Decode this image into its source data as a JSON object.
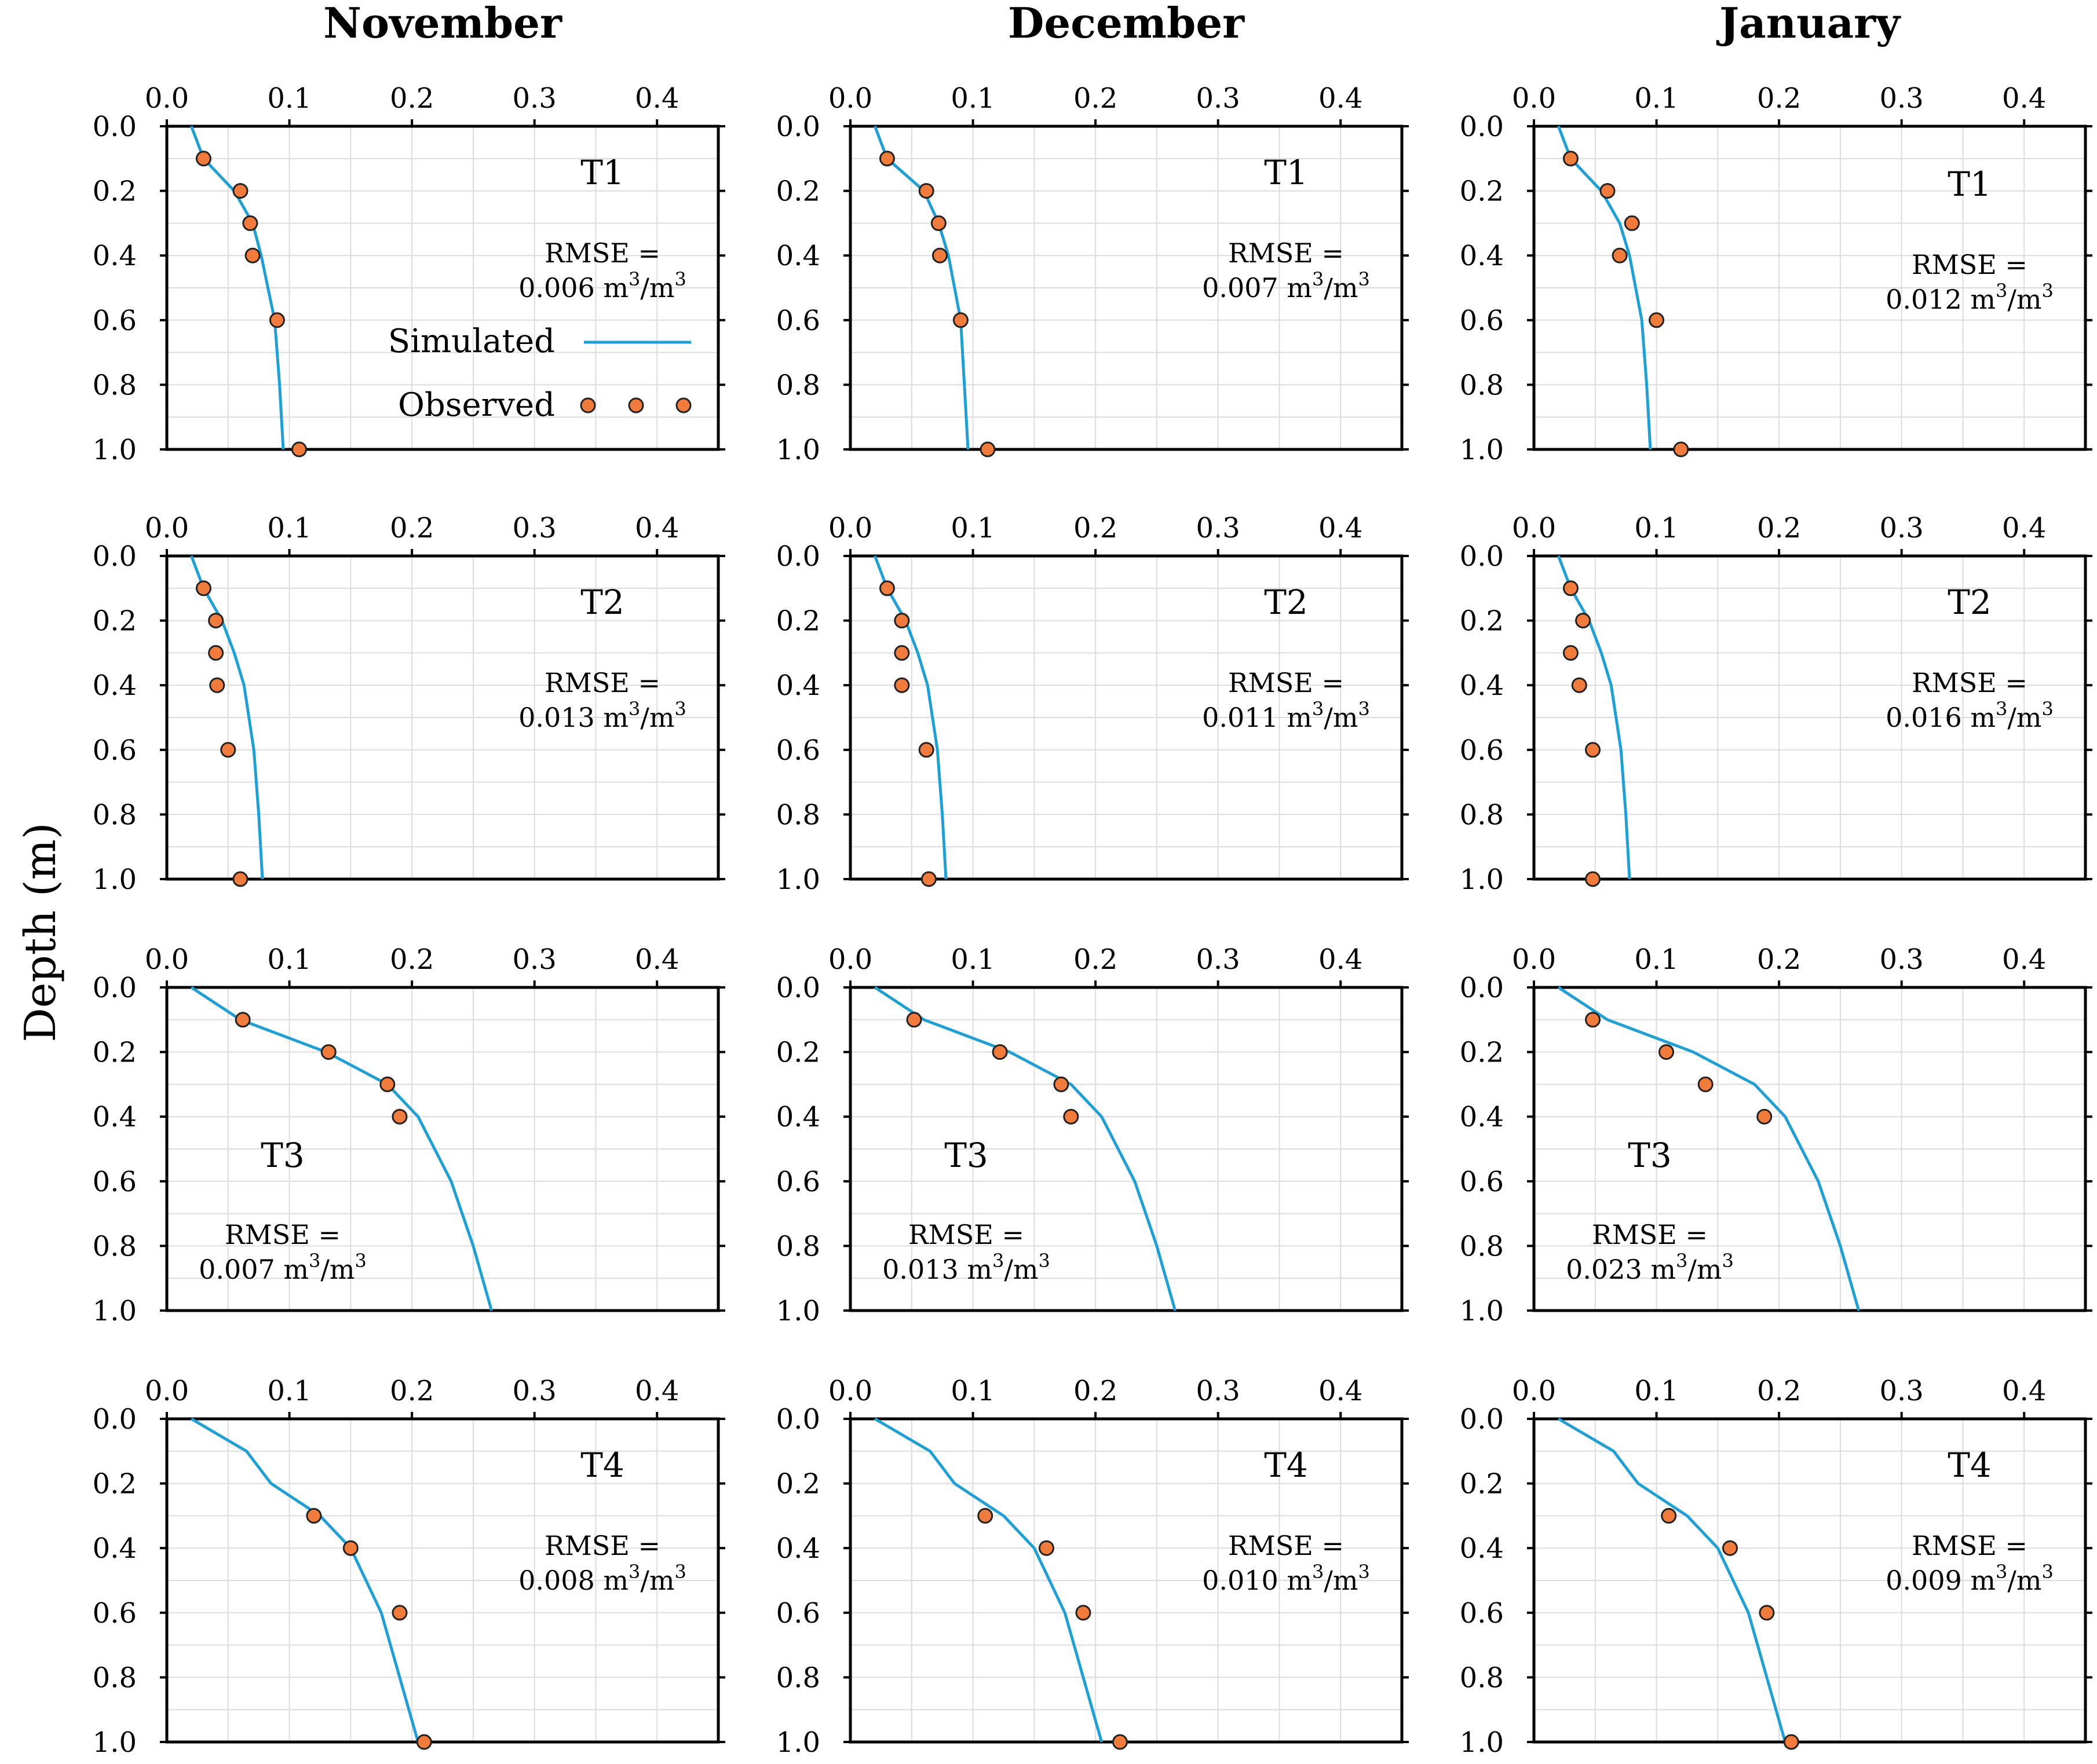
{
  "chart_data": {
    "type": "line",
    "ylabel": "Depth (m)",
    "columns": [
      "November",
      "December",
      "January"
    ],
    "rows": [
      "T1",
      "T2",
      "T3",
      "T4"
    ],
    "xlim": [
      0,
      0.45
    ],
    "ylim": [
      0,
      1.0
    ],
    "x_ticks": [
      0.0,
      0.1,
      0.2,
      0.3,
      0.4
    ],
    "x_tick_labels": [
      "0.0",
      "0.1",
      "0.2",
      "0.3",
      "0.4"
    ],
    "y_ticks": [
      0.0,
      0.2,
      0.4,
      0.6,
      0.8,
      1.0
    ],
    "y_tick_labels": [
      "0.0",
      "0.2",
      "0.4",
      "0.6",
      "0.8",
      "1.0"
    ],
    "legend": {
      "simulated": "Simulated",
      "observed": "Observed",
      "position": "inside top-left panel, center-right"
    },
    "colors": {
      "simulated": "#1ba1d8",
      "observed_fill": "#f07b3a",
      "observed_edge": "#222222",
      "grid": "#dcdcdc"
    },
    "panels": [
      {
        "col": 0,
        "row": 0,
        "label": "T1",
        "rmse_text": "RMSE =",
        "rmse_value": "0.006 m",
        "rmse_unit": "/m",
        "rmse_exp": "3",
        "simulated": {
          "depth": [
            0,
            0.1,
            0.2,
            0.3,
            0.4,
            0.6,
            0.8,
            1.0
          ],
          "value": [
            0.02,
            0.03,
            0.055,
            0.07,
            0.077,
            0.088,
            0.092,
            0.095
          ]
        },
        "observed": {
          "depth": [
            0.1,
            0.2,
            0.3,
            0.4,
            0.6,
            1.0
          ],
          "value": [
            0.03,
            0.06,
            0.068,
            0.07,
            0.09,
            0.108
          ]
        }
      },
      {
        "col": 1,
        "row": 0,
        "label": "T1",
        "rmse_text": "RMSE =",
        "rmse_value": "0.007 m",
        "rmse_unit": "/m",
        "rmse_exp": "3",
        "simulated": {
          "depth": [
            0,
            0.1,
            0.2,
            0.3,
            0.4,
            0.6,
            0.8,
            1.0
          ],
          "value": [
            0.02,
            0.03,
            0.06,
            0.072,
            0.08,
            0.09,
            0.093,
            0.096
          ]
        },
        "observed": {
          "depth": [
            0.1,
            0.2,
            0.3,
            0.4,
            0.6,
            1.0
          ],
          "value": [
            0.03,
            0.062,
            0.072,
            0.073,
            0.09,
            0.112
          ]
        }
      },
      {
        "col": 2,
        "row": 0,
        "label": "T1",
        "rmse_text": "RMSE =",
        "rmse_value": "0.012 m",
        "rmse_unit": "/m",
        "rmse_exp": "3",
        "simulated": {
          "depth": [
            0,
            0.1,
            0.2,
            0.3,
            0.4,
            0.6,
            0.8,
            1.0
          ],
          "value": [
            0.02,
            0.03,
            0.055,
            0.07,
            0.078,
            0.088,
            0.092,
            0.095
          ]
        },
        "observed": {
          "depth": [
            0.1,
            0.2,
            0.3,
            0.4,
            0.6,
            1.0
          ],
          "value": [
            0.03,
            0.06,
            0.08,
            0.07,
            0.1,
            0.12
          ]
        }
      },
      {
        "col": 0,
        "row": 1,
        "label": "T2",
        "rmse_text": "RMSE =",
        "rmse_value": "0.013 m",
        "rmse_unit": "/m",
        "rmse_exp": "3",
        "simulated": {
          "depth": [
            0,
            0.1,
            0.2,
            0.3,
            0.4,
            0.6,
            0.8,
            1.0
          ],
          "value": [
            0.02,
            0.03,
            0.045,
            0.055,
            0.063,
            0.071,
            0.075,
            0.078
          ]
        },
        "observed": {
          "depth": [
            0.1,
            0.2,
            0.3,
            0.4,
            0.6,
            1.0
          ],
          "value": [
            0.03,
            0.04,
            0.04,
            0.041,
            0.05,
            0.06
          ]
        }
      },
      {
        "col": 1,
        "row": 1,
        "label": "T2",
        "rmse_text": "RMSE =",
        "rmse_value": "0.011 m",
        "rmse_unit": "/m",
        "rmse_exp": "3",
        "simulated": {
          "depth": [
            0,
            0.1,
            0.2,
            0.3,
            0.4,
            0.6,
            0.8,
            1.0
          ],
          "value": [
            0.02,
            0.03,
            0.045,
            0.055,
            0.063,
            0.071,
            0.075,
            0.078
          ]
        },
        "observed": {
          "depth": [
            0.1,
            0.2,
            0.3,
            0.4,
            0.6,
            1.0
          ],
          "value": [
            0.03,
            0.042,
            0.042,
            0.042,
            0.062,
            0.064
          ]
        }
      },
      {
        "col": 2,
        "row": 1,
        "label": "T2",
        "rmse_text": "RMSE =",
        "rmse_value": "0.016 m",
        "rmse_unit": "/m",
        "rmse_exp": "3",
        "simulated": {
          "depth": [
            0,
            0.1,
            0.2,
            0.3,
            0.4,
            0.6,
            0.8,
            1.0
          ],
          "value": [
            0.02,
            0.03,
            0.045,
            0.055,
            0.063,
            0.071,
            0.075,
            0.078
          ]
        },
        "observed": {
          "depth": [
            0.1,
            0.2,
            0.3,
            0.4,
            0.6,
            1.0
          ],
          "value": [
            0.03,
            0.04,
            0.03,
            0.037,
            0.048,
            0.048
          ]
        }
      },
      {
        "col": 0,
        "row": 2,
        "label": "T3",
        "rmse_text": "RMSE =",
        "rmse_value": "0.007 m",
        "rmse_unit": "/m",
        "rmse_exp": "3",
        "simulated": {
          "depth": [
            0,
            0.1,
            0.2,
            0.3,
            0.4,
            0.6,
            0.8,
            1.0
          ],
          "value": [
            0.02,
            0.06,
            0.13,
            0.18,
            0.205,
            0.232,
            0.25,
            0.265
          ]
        },
        "observed": {
          "depth": [
            0.1,
            0.2,
            0.3,
            0.4
          ],
          "value": [
            0.062,
            0.132,
            0.18,
            0.19
          ]
        }
      },
      {
        "col": 1,
        "row": 2,
        "label": "T3",
        "rmse_text": "RMSE =",
        "rmse_value": "0.013 m",
        "rmse_unit": "/m",
        "rmse_exp": "3",
        "simulated": {
          "depth": [
            0,
            0.1,
            0.2,
            0.3,
            0.4,
            0.6,
            0.8,
            1.0
          ],
          "value": [
            0.02,
            0.06,
            0.13,
            0.18,
            0.205,
            0.232,
            0.25,
            0.265
          ]
        },
        "observed": {
          "depth": [
            0.1,
            0.2,
            0.3,
            0.4
          ],
          "value": [
            0.052,
            0.122,
            0.172,
            0.18
          ]
        }
      },
      {
        "col": 2,
        "row": 2,
        "label": "T3",
        "rmse_text": "RMSE =",
        "rmse_value": "0.023 m",
        "rmse_unit": "/m",
        "rmse_exp": "3",
        "simulated": {
          "depth": [
            0,
            0.1,
            0.2,
            0.3,
            0.4,
            0.6,
            0.8,
            1.0
          ],
          "value": [
            0.02,
            0.06,
            0.13,
            0.18,
            0.205,
            0.232,
            0.25,
            0.265
          ]
        },
        "observed": {
          "depth": [
            0.1,
            0.2,
            0.3,
            0.4
          ],
          "value": [
            0.048,
            0.108,
            0.14,
            0.188
          ]
        }
      },
      {
        "col": 0,
        "row": 3,
        "label": "T4",
        "rmse_text": "RMSE =",
        "rmse_value": "0.008 m",
        "rmse_unit": "/m",
        "rmse_exp": "3",
        "simulated": {
          "depth": [
            0,
            0.1,
            0.2,
            0.3,
            0.4,
            0.6,
            0.8,
            1.0
          ],
          "value": [
            0.02,
            0.065,
            0.085,
            0.125,
            0.15,
            0.175,
            0.19,
            0.205
          ]
        },
        "observed": {
          "depth": [
            0.3,
            0.4,
            0.6,
            1.0
          ],
          "value": [
            0.12,
            0.15,
            0.19,
            0.21
          ]
        }
      },
      {
        "col": 1,
        "row": 3,
        "label": "T4",
        "rmse_text": "RMSE =",
        "rmse_value": "0.010 m",
        "rmse_unit": "/m",
        "rmse_exp": "3",
        "simulated": {
          "depth": [
            0,
            0.1,
            0.2,
            0.3,
            0.4,
            0.6,
            0.8,
            1.0
          ],
          "value": [
            0.02,
            0.065,
            0.085,
            0.125,
            0.15,
            0.175,
            0.19,
            0.205
          ]
        },
        "observed": {
          "depth": [
            0.3,
            0.4,
            0.6,
            1.0
          ],
          "value": [
            0.11,
            0.16,
            0.19,
            0.22
          ]
        }
      },
      {
        "col": 2,
        "row": 3,
        "label": "T4",
        "rmse_text": "RMSE =",
        "rmse_value": "0.009 m",
        "rmse_unit": "/m",
        "rmse_exp": "3",
        "simulated": {
          "depth": [
            0,
            0.1,
            0.2,
            0.3,
            0.4,
            0.6,
            0.8,
            1.0
          ],
          "value": [
            0.02,
            0.065,
            0.085,
            0.125,
            0.15,
            0.175,
            0.19,
            0.205
          ]
        },
        "observed": {
          "depth": [
            0.3,
            0.4,
            0.6,
            1.0
          ],
          "value": [
            0.11,
            0.16,
            0.19,
            0.21
          ]
        }
      }
    ]
  }
}
